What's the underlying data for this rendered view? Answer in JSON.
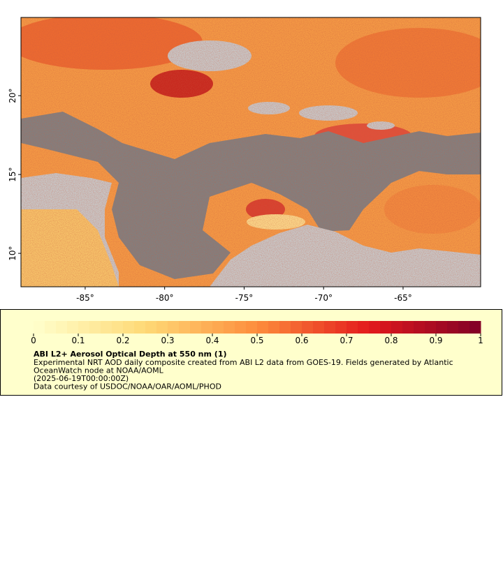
{
  "map": {
    "xlim": [
      -89.04,
      -60.12
    ],
    "ylim": [
      7.88,
      24.96
    ],
    "xticks": [
      {
        "value": -85,
        "label": "-85°"
      },
      {
        "value": -80,
        "label": "-80°"
      },
      {
        "value": -75,
        "label": "-75°"
      },
      {
        "value": -70,
        "label": "-70°"
      },
      {
        "value": -65,
        "label": "-65°"
      }
    ],
    "yticks": [
      {
        "value": 10,
        "label": "10°"
      },
      {
        "value": 15,
        "label": "15°"
      },
      {
        "value": 20,
        "label": "20°"
      }
    ]
  },
  "colorbar": {
    "range": [
      0,
      1
    ],
    "ticks": [
      0,
      0.1,
      0.2,
      0.3,
      0.4,
      0.5,
      0.6,
      0.7,
      0.8,
      0.9,
      1
    ],
    "colors": [
      "#ffffcc",
      "#fed976",
      "#fd8d3c",
      "#e31a1c",
      "#800026"
    ]
  },
  "legend": {
    "title": "ABI L2+ Aerosol Optical Depth at 550 nm (1)",
    "lines": [
      "Experimental NRT AOD daily composite created from ABI L2 data from GOES-19. Fields generated by Atlantic",
      "OceanWatch node at NOAA/AOML",
      "(2025-06-19T00:00:00Z)",
      "Data courtesy of USDOC/NOAA/OAR/AOML/PHOD"
    ]
  }
}
